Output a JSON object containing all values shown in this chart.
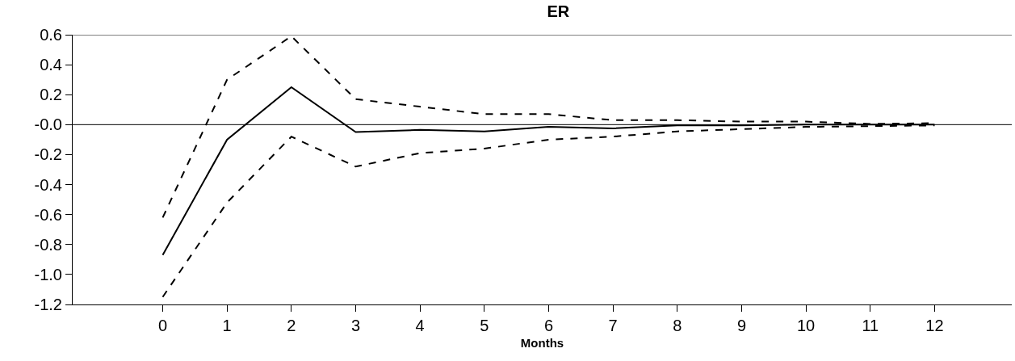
{
  "chart_data": {
    "type": "line",
    "title": "ER",
    "xlabel": "Months",
    "x": [
      0,
      1,
      2,
      3,
      4,
      5,
      6,
      7,
      8,
      9,
      10,
      11,
      12
    ],
    "series": [
      {
        "color": "#000000",
        "values": [
          -0.87,
          -0.1,
          0.25,
          -0.05,
          -0.035,
          -0.045,
          -0.015,
          -0.025,
          -0.005,
          -0.005,
          0.0,
          0.0,
          0.0
        ]
      },
      {
        "color": "#000000",
        "line_style": "dashed",
        "values": [
          -0.62,
          0.3,
          0.59,
          0.17,
          0.12,
          0.07,
          0.07,
          0.03,
          0.03,
          0.02,
          0.02,
          0.005,
          0.01
        ]
      },
      {
        "color": "#000000",
        "line_style": "dashed",
        "values": [
          -1.15,
          -0.52,
          -0.08,
          -0.28,
          -0.19,
          -0.16,
          -0.1,
          -0.08,
          -0.045,
          -0.03,
          -0.015,
          -0.01,
          -0.005
        ]
      }
    ],
    "xlim": [
      -1.4,
      13.2
    ],
    "xticks": [
      0,
      1,
      2,
      3,
      4,
      5,
      6,
      7,
      8,
      9,
      10,
      11,
      12
    ],
    "ylim": [
      -1.2,
      0.6
    ],
    "yticks": [
      {
        "value": -1.2,
        "label": "-1.2"
      },
      {
        "value": -1,
        "label": "-1.0"
      },
      {
        "value": -0.8,
        "label": "-0.8"
      },
      {
        "value": -0.6,
        "label": "-0.6"
      },
      {
        "value": -0.4,
        "label": "-0.4"
      },
      {
        "value": -0.2,
        "label": "-0.2"
      },
      {
        "value": 0,
        "label": "-0.0"
      },
      0.2,
      0.4,
      0.6
    ],
    "ref_lines": [
      {
        "axis": "y",
        "value": 0,
        "color": "#000000"
      }
    ],
    "grid": false,
    "marker": "none",
    "line_style": "solid"
  }
}
